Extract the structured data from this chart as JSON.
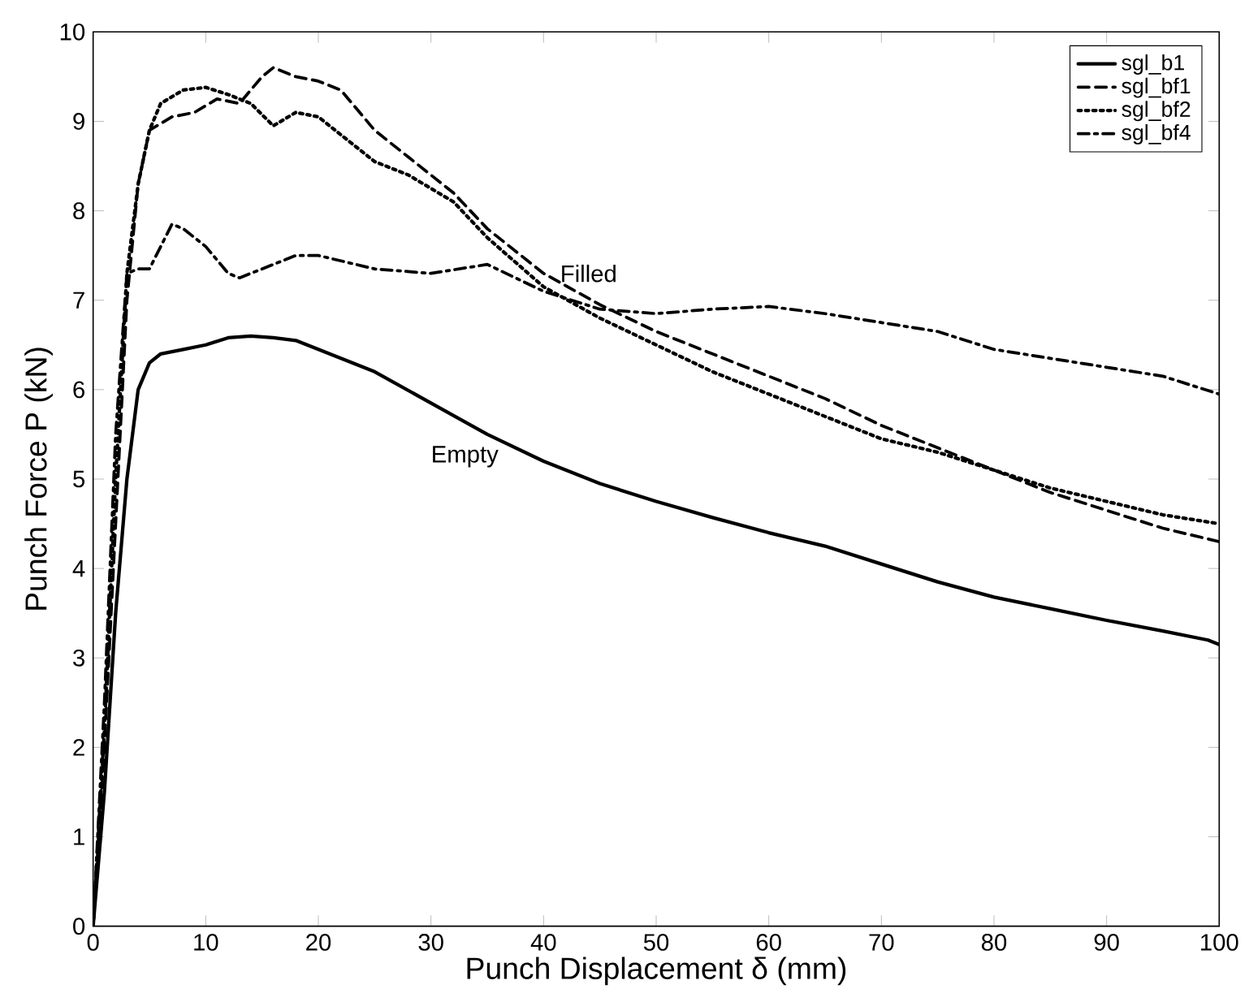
{
  "chart_data": {
    "type": "line",
    "xlabel": "Punch Displacement δ (mm)",
    "ylabel": "Punch Force P (kN)",
    "xlim": [
      0,
      100
    ],
    "ylim": [
      0,
      10
    ],
    "xticks": [
      0,
      10,
      20,
      30,
      40,
      50,
      60,
      70,
      80,
      90,
      100
    ],
    "yticks": [
      0,
      1,
      2,
      3,
      4,
      5,
      6,
      7,
      8,
      9,
      10
    ],
    "legend": "top right",
    "grid": false,
    "marker": "none",
    "annotations": [
      "Filled",
      "Empty"
    ],
    "series": [
      {
        "name": "sgl_b1",
        "color": "#000000",
        "line_style": "solid",
        "x": [
          0,
          1,
          2,
          3,
          4,
          5,
          6,
          8,
          10,
          12,
          14,
          16,
          18,
          20,
          25,
          30,
          35,
          40,
          45,
          50,
          55,
          60,
          65,
          70,
          75,
          80,
          85,
          90,
          95,
          99,
          100
        ],
        "values": [
          0,
          1.5,
          3.5,
          5,
          6,
          6.3,
          6.4,
          6.45,
          6.5,
          6.58,
          6.6,
          6.58,
          6.55,
          6.45,
          6.2,
          5.85,
          5.5,
          5.2,
          4.95,
          4.75,
          4.57,
          4.4,
          4.25,
          4.05,
          3.85,
          3.68,
          3.55,
          3.42,
          3.3,
          3.2,
          3.15
        ]
      },
      {
        "name": "sgl_bf1",
        "color": "#000000",
        "line_style": "dashed",
        "x": [
          0,
          1,
          2,
          3,
          4,
          5,
          7,
          9,
          11,
          13,
          15,
          16,
          18,
          20,
          22,
          25,
          28,
          32,
          35,
          40,
          45,
          50,
          55,
          60,
          65,
          70,
          75,
          80,
          85,
          90,
          95,
          100
        ],
        "values": [
          0,
          2,
          4.5,
          7,
          8.3,
          8.9,
          9.05,
          9.1,
          9.25,
          9.2,
          9.5,
          9.6,
          9.5,
          9.45,
          9.35,
          8.9,
          8.6,
          8.2,
          7.8,
          7.3,
          6.95,
          6.65,
          6.4,
          6.15,
          5.9,
          5.6,
          5.35,
          5.1,
          4.85,
          4.65,
          4.45,
          4.3
        ]
      },
      {
        "name": "sgl_bf2",
        "color": "#000000",
        "line_style": "dotted",
        "x": [
          0,
          1,
          2,
          3,
          4,
          5,
          6,
          8,
          10,
          12,
          14,
          16,
          18,
          20,
          22,
          25,
          28,
          32,
          35,
          40,
          45,
          50,
          55,
          60,
          65,
          70,
          75,
          80,
          85,
          90,
          95,
          100
        ],
        "values": [
          0,
          2.2,
          5,
          7.3,
          8.3,
          8.9,
          9.2,
          9.35,
          9.38,
          9.3,
          9.2,
          8.95,
          9.1,
          9.05,
          8.85,
          8.55,
          8.4,
          8.1,
          7.7,
          7.15,
          6.8,
          6.5,
          6.2,
          5.95,
          5.7,
          5.45,
          5.3,
          5.1,
          4.9,
          4.75,
          4.6,
          4.5
        ]
      },
      {
        "name": "sgl_bf4",
        "color": "#000000",
        "line_style": "dashdot",
        "x": [
          0,
          1,
          2,
          3,
          4,
          5,
          6,
          7,
          8,
          10,
          12,
          13,
          15,
          18,
          20,
          25,
          30,
          35,
          40,
          45,
          50,
          55,
          60,
          65,
          70,
          75,
          80,
          85,
          90,
          95,
          100
        ],
        "values": [
          0,
          2.5,
          5.5,
          7.3,
          7.35,
          7.35,
          7.6,
          7.85,
          7.8,
          7.6,
          7.3,
          7.25,
          7.35,
          7.5,
          7.5,
          7.35,
          7.3,
          7.4,
          7.1,
          6.9,
          6.85,
          6.9,
          6.93,
          6.85,
          6.75,
          6.65,
          6.45,
          6.35,
          6.25,
          6.15,
          5.95
        ]
      }
    ]
  }
}
